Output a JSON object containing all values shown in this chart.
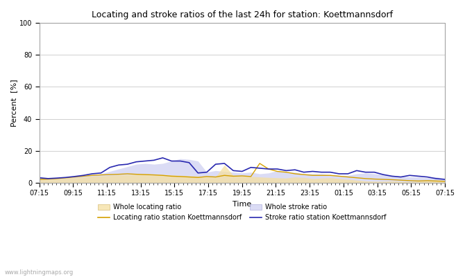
{
  "title": "Locating and stroke ratios of the last 24h for station: Koettmannsdorf",
  "xlabel": "Time",
  "ylabel": "Percent  [%]",
  "watermark": "www.lightningmaps.org",
  "x_labels": [
    "07:15",
    "09:15",
    "11:15",
    "13:15",
    "15:15",
    "17:15",
    "19:15",
    "21:15",
    "23:15",
    "01:15",
    "03:15",
    "05:15",
    "07:15"
  ],
  "ylim": [
    0,
    100
  ],
  "yticks": [
    0,
    20,
    40,
    60,
    80,
    100
  ],
  "background_color": "#ffffff",
  "plot_bg_color": "#ffffff",
  "grid_color": "#d0d0d0",
  "whole_locating": [
    2.5,
    2.5,
    2.8,
    3.0,
    3.2,
    3.5,
    4.0,
    4.2,
    4.5,
    4.8,
    5.0,
    5.2,
    5.5,
    5.2,
    5.0,
    4.8,
    4.5,
    4.2,
    4.0,
    3.8,
    3.5,
    11.0,
    4.5,
    4.2,
    3.8,
    3.5,
    3.2,
    3.0,
    2.8,
    3.5,
    3.2,
    2.5,
    2.8,
    3.0,
    2.5,
    2.0,
    1.5,
    1.0,
    0.8,
    0.8,
    1.0,
    0.8,
    0.5,
    0.8,
    1.0,
    1.2,
    1.0
  ],
  "locating_station": [
    2.0,
    2.2,
    2.5,
    3.0,
    3.5,
    4.0,
    4.5,
    4.8,
    5.0,
    5.2,
    5.5,
    5.2,
    5.0,
    4.8,
    4.5,
    4.0,
    3.8,
    3.5,
    3.2,
    3.8,
    3.5,
    4.5,
    4.0,
    4.2,
    3.8,
    12.0,
    8.5,
    7.0,
    6.5,
    5.5,
    5.0,
    4.5,
    4.5,
    4.5,
    4.0,
    3.5,
    3.0,
    2.5,
    2.2,
    2.0,
    1.8,
    1.5,
    1.2,
    1.0,
    1.2,
    1.0,
    0.8
  ],
  "whole_stroke": [
    3.5,
    2.5,
    2.8,
    3.2,
    3.8,
    4.2,
    4.8,
    5.5,
    7.0,
    8.5,
    10.0,
    11.5,
    12.0,
    11.5,
    12.0,
    13.5,
    15.0,
    14.5,
    13.5,
    6.5,
    7.5,
    7.0,
    6.5,
    6.0,
    6.5,
    5.5,
    6.0,
    7.5,
    6.5,
    6.5,
    5.5,
    5.5,
    5.5,
    5.0,
    4.5,
    4.5,
    5.5,
    6.0,
    5.5,
    5.0,
    4.5,
    4.0,
    3.5,
    3.5,
    3.0,
    3.5,
    2.5
  ],
  "stroke_station": [
    3.0,
    2.5,
    2.8,
    3.2,
    3.8,
    4.5,
    5.5,
    6.0,
    9.5,
    11.0,
    11.5,
    13.0,
    13.5,
    14.0,
    15.5,
    13.5,
    13.5,
    12.5,
    6.0,
    6.5,
    11.5,
    12.0,
    7.5,
    7.0,
    9.5,
    9.0,
    8.5,
    8.5,
    7.5,
    8.0,
    6.5,
    7.0,
    6.5,
    6.5,
    5.5,
    5.5,
    7.5,
    6.5,
    6.5,
    5.0,
    4.0,
    3.5,
    4.5,
    4.0,
    3.5,
    2.5,
    2.0
  ],
  "color_whole_locating_fill": "#f5e0a0",
  "color_whole_locating_fill_alpha": 0.75,
  "color_whole_stroke_fill": "#c8caf0",
  "color_whole_stroke_fill_alpha": 0.65,
  "color_locating_station_line": "#d4a000",
  "color_stroke_station_line": "#2828b0",
  "legend_labels": [
    "Whole locating ratio",
    "Locating ratio station Koettmannsdorf",
    "Whole stroke ratio",
    "Stroke ratio station Koettmannsdorf"
  ]
}
